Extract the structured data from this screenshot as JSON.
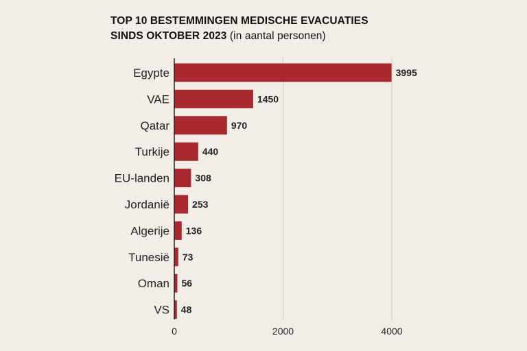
{
  "chart_data": {
    "type": "bar",
    "orientation": "horizontal",
    "title_bold_1": "TOP 10 BESTEMMINGEN MEDISCHE EVACUATIES",
    "title_bold_2": "SINDS OKTOBER 2023",
    "title_suffix": "(in aantal personen)",
    "categories": [
      "Egypte",
      "VAE",
      "Qatar",
      "Turkije",
      "EU-landen",
      "Jordanië",
      "Algerije",
      "Tunesië",
      "Oman",
      "VS"
    ],
    "values": [
      3995,
      1450,
      970,
      440,
      308,
      253,
      136,
      73,
      56,
      48
    ],
    "value_labels": [
      "3995",
      "1450",
      "970",
      "440",
      "308",
      "253",
      "136",
      "73",
      "56",
      "48"
    ],
    "xlim": [
      0,
      4000
    ],
    "xticks": [
      0,
      2000,
      4000
    ],
    "xtick_labels": [
      "0",
      "2000",
      "4000"
    ],
    "grid": "vertical",
    "bar_color": "#a7282e",
    "xlabel": "",
    "ylabel": ""
  }
}
